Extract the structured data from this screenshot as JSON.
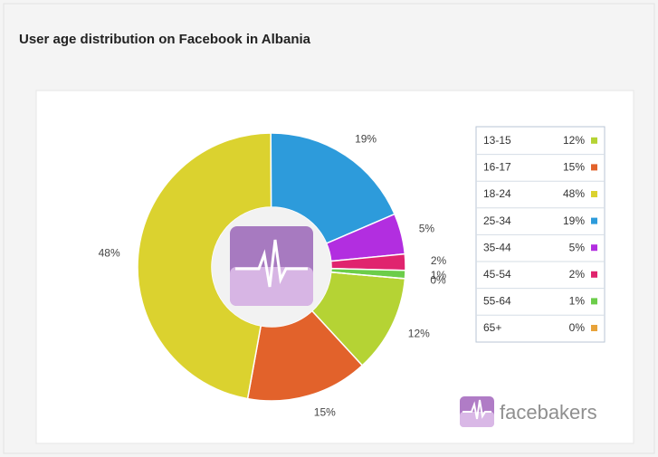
{
  "chart_data": {
    "type": "donut",
    "title": "User age distribution on Facebook in Albania",
    "categories": [
      "13-15",
      "16-17",
      "18-24",
      "25-34",
      "35-44",
      "45-54",
      "55-64",
      "65+"
    ],
    "values": [
      12,
      15,
      48,
      19,
      5,
      2,
      1,
      0
    ],
    "value_labels": [
      "12%",
      "15%",
      "48%",
      "19%",
      "5%",
      "2%",
      "1%",
      "0%"
    ],
    "colors": [
      "#b5d334",
      "#e2622b",
      "#dbd22f",
      "#2d9bdb",
      "#b22ee0",
      "#e0246e",
      "#6ccd4a",
      "#e8a33a"
    ],
    "legend": "right"
  },
  "logo": "facebakers"
}
